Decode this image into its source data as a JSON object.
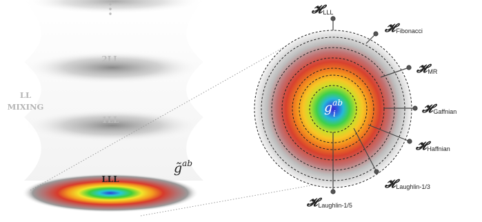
{
  "left": {
    "levels": [
      {
        "label": "2LL",
        "color": "#bdbdbd"
      },
      {
        "label": "1LL",
        "color": "#bdbdbd"
      },
      {
        "label": "LLL",
        "color": "#222222"
      }
    ],
    "mixing_label_line1": "LL",
    "mixing_label_line2": "MIXING",
    "metric_label": "g̃",
    "metric_superscript": "ab"
  },
  "right": {
    "center_label": "g",
    "center_sub": "i",
    "center_sup": "ab",
    "hamiltonian_symbol": "𝓗",
    "hamiltonians": [
      {
        "name": "LLL"
      },
      {
        "name": "Fibonacci"
      },
      {
        "name": "MR"
      },
      {
        "name": "Gaffnian"
      },
      {
        "name": "Haffnian"
      },
      {
        "name": "Laughlin-1/3"
      },
      {
        "name": "Laughlin-1/5"
      }
    ]
  },
  "colors": {
    "center": "#2a3bd6",
    "ring_dash": "#222222",
    "lll_spectrum": [
      "#2b3cd7",
      "#26c8d6",
      "#3fce3a",
      "#f2e52a",
      "#f49b1f",
      "#d83a2b",
      "#b05a5a"
    ]
  }
}
